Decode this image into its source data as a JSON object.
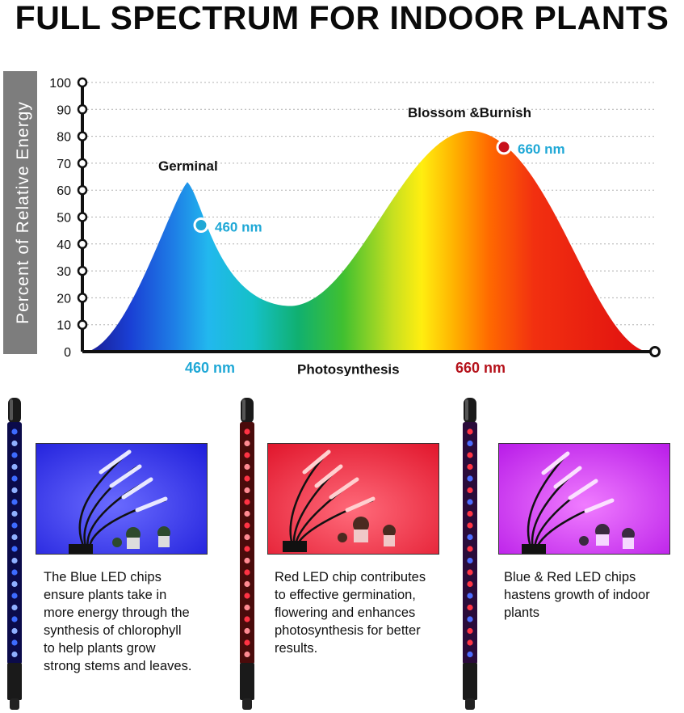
{
  "title": "FULL SPECTRUM FOR INDOOR PLANTS",
  "chart_data": {
    "type": "area",
    "ylabel": "Percent of Relative Energy",
    "ylim": [
      0,
      100
    ],
    "yticks": [
      0,
      10,
      20,
      30,
      40,
      50,
      60,
      70,
      80,
      90,
      100
    ],
    "grid": true,
    "x_tick_labels": [
      {
        "label": "460 nm",
        "color": "#1fa8d6"
      },
      {
        "label": "660 nm",
        "color": "#b5121b"
      }
    ],
    "peaks": [
      {
        "label": "Germinal",
        "value": 63
      },
      {
        "label": "Blossom &Burnish",
        "value": 82
      }
    ],
    "valley": {
      "label": "Photosynthesis",
      "value": 17
    },
    "markers": [
      {
        "label": "460 nm",
        "value": 47,
        "color": "#1fa8d6"
      },
      {
        "label": "660 nm",
        "value": 76,
        "color": "#c8101c"
      }
    ]
  },
  "panels": [
    {
      "light": "blue",
      "caption_lines": [
        "The Blue LED chips",
        "ensure plants take in",
        "more energy through the",
        "synthesis of chlorophyll",
        "to help plants grow",
        "strong stems and leaves."
      ]
    },
    {
      "light": "red",
      "caption_lines": [
        "Red LED chip contributes",
        "to effective germination,",
        "flowering and enhances",
        "photosynthesis for better",
        "results."
      ]
    },
    {
      "light": "blue-red",
      "caption_lines": [
        "Blue & Red LED chips",
        "hastens growth of indoor",
        "plants"
      ]
    }
  ],
  "colors": {
    "blue_light": "#1f3dff",
    "red_light": "#ff1a2e",
    "mixed_light": "#d21cff",
    "blue_text": "#1fa8d6",
    "red_text": "#b5121b"
  }
}
